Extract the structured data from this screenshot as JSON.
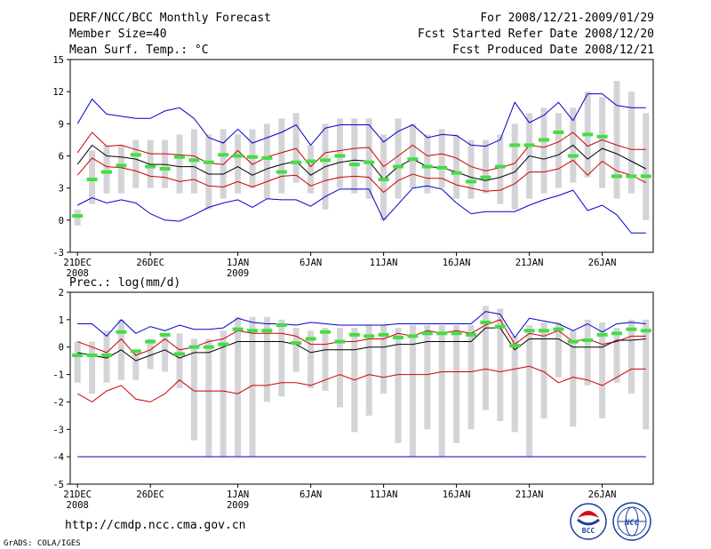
{
  "header": {
    "title": "DERF/NCC/BCC Monthly Forecast",
    "member_size": "Member Size=40",
    "variable_temp": "Mean Surf. Temp.: °C",
    "period": "For 2008/12/21-2009/01/29",
    "fcst_started": "Fcst Started Refer Date 2008/12/20",
    "fcst_produced": "Fcst Produced Date 2008/12/21"
  },
  "footer": {
    "url": "http://cmdp.ncc.cma.gov.cn",
    "grads": "GrADS: COLA/IGES",
    "logo_bcc": "BCC",
    "logo_ncc": "NCC"
  },
  "colors": {
    "max_line": "#0000cc",
    "sd_line": "#cc0000",
    "mean_line": "#000000",
    "box": "#d4d4d8",
    "marker": "#44dd44"
  },
  "chart_data": [
    {
      "type": "line",
      "name": "temperature",
      "title": "Mean Surf. Temp.: °C",
      "ylim": [
        -3,
        15
      ],
      "yticks": [
        -3,
        0,
        3,
        6,
        9,
        12,
        15
      ],
      "xlim": [
        -0.5,
        39.5
      ],
      "xticks": [
        {
          "i": 0,
          "label": "21DEC",
          "year": "2008"
        },
        {
          "i": 5,
          "label": "26DEC"
        },
        {
          "i": 11,
          "label": "1JAN",
          "year": "2009"
        },
        {
          "i": 16,
          "label": "6JAN"
        },
        {
          "i": 21,
          "label": "11JAN"
        },
        {
          "i": 26,
          "label": "16JAN"
        },
        {
          "i": 31,
          "label": "21JAN"
        },
        {
          "i": 36,
          "label": "26JAN"
        }
      ],
      "box_low": [
        -0.5,
        1.5,
        2.5,
        2.5,
        3.0,
        3.0,
        3.0,
        2.5,
        2.5,
        1.0,
        2.0,
        2.5,
        3.0,
        2.0,
        2.5,
        3.5,
        2.5,
        1.0,
        3.0,
        2.5,
        2.0,
        0.0,
        2.0,
        3.0,
        2.5,
        3.0,
        2.0,
        2.0,
        2.5,
        1.5,
        1.0,
        2.0,
        2.5,
        3.0,
        3.5,
        4.0,
        3.0,
        2.0,
        2.5,
        0.0
      ],
      "box_high": [
        1.0,
        6.5,
        7.0,
        7.0,
        7.5,
        7.5,
        7.5,
        8.0,
        8.5,
        8.0,
        8.5,
        8.0,
        8.5,
        9.0,
        9.5,
        10.0,
        7.0,
        9.0,
        9.5,
        9.5,
        9.5,
        8.0,
        9.5,
        9.0,
        8.0,
        8.5,
        8.0,
        7.5,
        7.5,
        8.0,
        9.0,
        10.0,
        10.5,
        10.0,
        10.5,
        12.0,
        11.5,
        13.0,
        12.0,
        10.0
      ],
      "max": [
        9.0,
        11.3,
        9.9,
        9.7,
        9.5,
        9.5,
        10.2,
        10.5,
        9.5,
        7.7,
        7.2,
        8.5,
        7.2,
        7.7,
        8.2,
        8.9,
        7.0,
        8.6,
        8.9,
        8.9,
        8.9,
        7.3,
        8.3,
        8.9,
        7.7,
        8.0,
        7.9,
        7.0,
        6.9,
        7.5,
        11.0,
        9.1,
        9.8,
        11.0,
        9.3,
        11.8,
        11.8,
        10.7,
        10.5,
        10.5
      ],
      "sd_upper": [
        6.3,
        8.2,
        6.9,
        7.0,
        6.6,
        6.2,
        6.2,
        6.1,
        6.0,
        5.3,
        5.2,
        6.5,
        5.2,
        5.9,
        6.3,
        6.7,
        5.0,
        6.3,
        6.5,
        6.7,
        6.8,
        5.0,
        6.0,
        7.0,
        6.0,
        6.2,
        5.8,
        5.0,
        4.6,
        4.9,
        5.3,
        7.0,
        6.8,
        7.3,
        8.2,
        6.9,
        7.5,
        7.0,
        6.6,
        6.6
      ],
      "mean": [
        5.2,
        7.0,
        6.0,
        5.9,
        5.7,
        5.2,
        5.2,
        5.0,
        5.0,
        4.3,
        4.3,
        5.0,
        4.2,
        4.8,
        5.2,
        5.5,
        4.2,
        5.0,
        5.4,
        5.6,
        5.5,
        3.8,
        5.0,
        5.7,
        5.0,
        4.9,
        4.5,
        4.0,
        3.7,
        4.0,
        4.5,
        6.0,
        5.7,
        6.1,
        7.0,
        5.7,
        6.7,
        6.2,
        5.5,
        4.8
      ],
      "sd_lower": [
        4.2,
        5.8,
        5.0,
        4.9,
        4.6,
        4.1,
        4.0,
        3.6,
        3.8,
        3.2,
        3.1,
        3.6,
        3.1,
        3.6,
        4.1,
        4.2,
        3.2,
        3.7,
        4.0,
        4.1,
        4.0,
        2.6,
        3.7,
        4.3,
        3.9,
        3.9,
        3.3,
        3.0,
        2.7,
        2.8,
        3.4,
        4.5,
        4.5,
        4.8,
        5.6,
        4.2,
        5.5,
        4.6,
        4.2,
        3.5
      ],
      "min": [
        1.4,
        2.1,
        1.6,
        1.9,
        1.6,
        0.6,
        0.0,
        -0.1,
        0.5,
        1.2,
        1.6,
        1.9,
        1.2,
        2.0,
        1.9,
        1.9,
        1.3,
        2.2,
        2.9,
        2.9,
        2.9,
        0.0,
        1.5,
        3.0,
        3.2,
        2.9,
        1.6,
        0.6,
        0.8,
        0.8,
        0.8,
        1.4,
        1.9,
        2.3,
        2.8,
        0.9,
        1.4,
        0.5,
        -1.2,
        -1.2
      ],
      "marker": [
        0.4,
        3.8,
        4.5,
        5.1,
        6.1,
        5.0,
        4.8,
        5.9,
        5.6,
        5.4,
        6.1,
        6.0,
        5.9,
        5.8,
        4.5,
        5.4,
        5.5,
        5.6,
        6.0,
        5.2,
        5.4,
        3.8,
        5.0,
        5.7,
        5.0,
        4.9,
        4.4,
        3.6,
        4.0,
        5.0,
        7.0,
        7.0,
        7.5,
        8.2,
        6.0,
        8.0,
        7.8,
        4.1,
        4.1,
        4.1
      ]
    },
    {
      "type": "line",
      "name": "precipitation",
      "title": "Prec.: log(mm/d)",
      "ylim": [
        -5,
        2
      ],
      "yticks": [
        -5,
        -4,
        -3,
        -2,
        -1,
        0,
        1,
        2
      ],
      "xlim": [
        -0.5,
        39.5
      ],
      "xticks": [
        {
          "i": 0,
          "label": "21DEC",
          "year": "2008"
        },
        {
          "i": 5,
          "label": "26DEC"
        },
        {
          "i": 11,
          "label": "1JAN",
          "year": "2009"
        },
        {
          "i": 16,
          "label": "6JAN"
        },
        {
          "i": 21,
          "label": "11JAN"
        },
        {
          "i": 26,
          "label": "16JAN"
        },
        {
          "i": 31,
          "label": "21JAN"
        },
        {
          "i": 36,
          "label": "26JAN"
        }
      ],
      "box_low": [
        -1.3,
        -1.7,
        -1.3,
        -1.2,
        -1.2,
        -0.8,
        -0.9,
        -1.5,
        -3.4,
        -4.0,
        -4.0,
        -4.0,
        -4.0,
        -2.0,
        -1.8,
        -0.9,
        -1.5,
        -1.6,
        -2.2,
        -3.1,
        -2.5,
        -1.7,
        -3.5,
        -4.0,
        -3.0,
        -4.0,
        -3.5,
        -3.0,
        -2.3,
        -2.7,
        -3.1,
        -4.0,
        -2.6,
        -1.1,
        -2.9,
        -1.4,
        -2.6,
        -1.3,
        -1.7,
        -3.0
      ],
      "box_high": [
        0.2,
        0.2,
        0.6,
        1.0,
        -0.1,
        0.3,
        0.5,
        0.5,
        0.3,
        0.3,
        0.6,
        1.1,
        1.1,
        1.1,
        1.0,
        0.7,
        0.6,
        0.7,
        0.7,
        0.7,
        0.8,
        0.8,
        0.7,
        0.8,
        0.8,
        0.8,
        0.8,
        0.8,
        1.5,
        1.4,
        0.4,
        0.8,
        0.9,
        0.9,
        0.6,
        1.0,
        0.9,
        0.7,
        1.0,
        1.0
      ],
      "max": [
        0.85,
        0.85,
        0.4,
        1.0,
        0.5,
        0.75,
        0.6,
        0.8,
        0.65,
        0.65,
        0.7,
        1.05,
        0.9,
        0.85,
        0.85,
        0.8,
        0.9,
        0.85,
        0.8,
        0.8,
        0.8,
        0.8,
        0.85,
        0.85,
        0.85,
        0.85,
        0.85,
        0.85,
        1.3,
        1.2,
        0.35,
        1.05,
        0.95,
        0.85,
        0.6,
        0.85,
        0.55,
        0.85,
        0.9,
        0.85
      ],
      "sd_upper": [
        0.2,
        0.0,
        -0.2,
        0.3,
        -0.3,
        -0.1,
        0.3,
        -0.1,
        0.0,
        0.2,
        0.3,
        0.6,
        0.5,
        0.5,
        0.5,
        0.4,
        0.1,
        0.1,
        0.2,
        0.2,
        0.3,
        0.3,
        0.5,
        0.4,
        0.6,
        0.5,
        0.6,
        0.5,
        0.8,
        1.0,
        0.1,
        0.5,
        0.4,
        0.6,
        0.2,
        0.3,
        0.1,
        0.2,
        0.4,
        0.4
      ],
      "mean": [
        -0.2,
        -0.3,
        -0.4,
        -0.1,
        -0.5,
        -0.3,
        -0.1,
        -0.4,
        -0.2,
        -0.2,
        0.0,
        0.2,
        0.2,
        0.2,
        0.2,
        0.1,
        -0.2,
        -0.1,
        -0.1,
        -0.1,
        0.0,
        0.0,
        0.1,
        0.1,
        0.2,
        0.2,
        0.2,
        0.2,
        0.7,
        0.7,
        -0.1,
        0.3,
        0.3,
        0.3,
        0.0,
        0.0,
        0.0,
        0.25,
        0.25,
        0.3
      ],
      "sd_lower": [
        -1.7,
        -2.0,
        -1.6,
        -1.4,
        -1.9,
        -2.0,
        -1.7,
        -1.2,
        -1.6,
        -1.6,
        -1.6,
        -1.7,
        -1.4,
        -1.4,
        -1.3,
        -1.3,
        -1.4,
        -1.2,
        -1.0,
        -1.2,
        -1.0,
        -1.1,
        -1.0,
        -1.0,
        -1.0,
        -0.9,
        -0.9,
        -0.9,
        -0.8,
        -0.9,
        -0.8,
        -0.7,
        -0.9,
        -1.3,
        -1.1,
        -1.2,
        -1.4,
        -1.1,
        -0.8,
        -0.8
      ],
      "min": [
        -4,
        -4,
        -4,
        -4,
        -4,
        -4,
        -4,
        -4,
        -4,
        -4,
        -4,
        -4,
        -4,
        -4,
        -4,
        -4,
        -4,
        -4,
        -4,
        -4,
        -4,
        -4,
        -4,
        -4,
        -4,
        -4,
        -4,
        -4,
        -4,
        -4,
        -4,
        -4,
        -4,
        -4,
        -4,
        -4,
        -4,
        -4,
        -4,
        -4
      ],
      "marker": [
        -0.3,
        -0.3,
        -0.3,
        0.55,
        -0.15,
        0.2,
        0.45,
        -0.25,
        0.0,
        0.0,
        0.1,
        0.65,
        0.6,
        0.6,
        0.8,
        0.15,
        0.3,
        0.55,
        0.2,
        0.45,
        0.4,
        0.45,
        0.35,
        0.4,
        0.5,
        0.5,
        0.5,
        0.45,
        0.9,
        0.75,
        0.05,
        0.6,
        0.6,
        0.65,
        0.2,
        0.25,
        0.45,
        0.5,
        0.65,
        0.6
      ]
    }
  ]
}
